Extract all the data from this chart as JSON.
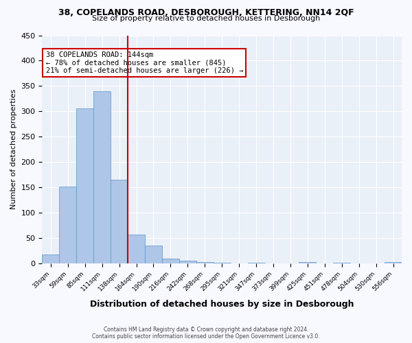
{
  "title": "38, COPELANDS ROAD, DESBOROUGH, KETTERING, NN14 2QF",
  "subtitle": "Size of property relative to detached houses in Desborough",
  "xlabel": "Distribution of detached houses by size in Desborough",
  "ylabel": "Number of detached properties",
  "bar_labels": [
    "33sqm",
    "59sqm",
    "85sqm",
    "111sqm",
    "138sqm",
    "164sqm",
    "190sqm",
    "216sqm",
    "242sqm",
    "268sqm",
    "295sqm",
    "321sqm",
    "347sqm",
    "373sqm",
    "399sqm",
    "425sqm",
    "451sqm",
    "478sqm",
    "504sqm",
    "530sqm",
    "556sqm"
  ],
  "bar_values": [
    18,
    152,
    306,
    340,
    165,
    57,
    35,
    10,
    5,
    3,
    1,
    0,
    2,
    0,
    0,
    3,
    0,
    2,
    0,
    0,
    3
  ],
  "bar_color": "#aec6e8",
  "bar_edge_color": "#5a96c8",
  "vline_x": 4,
  "vline_color": "#cc0000",
  "annotation_title": "38 COPELANDS ROAD: 144sqm",
  "annotation_line1": "← 78% of detached houses are smaller (845)",
  "annotation_line2": "21% of semi-detached houses are larger (226) →",
  "annotation_box_color": "#cc0000",
  "ylim": [
    0,
    450
  ],
  "yticks": [
    0,
    50,
    100,
    150,
    200,
    250,
    300,
    350,
    400,
    450
  ],
  "plot_bg_color": "#eaf0f8",
  "footer_line1": "Contains HM Land Registry data © Crown copyright and database right 2024.",
  "footer_line2": "Contains public sector information licensed under the Open Government Licence v3.0."
}
